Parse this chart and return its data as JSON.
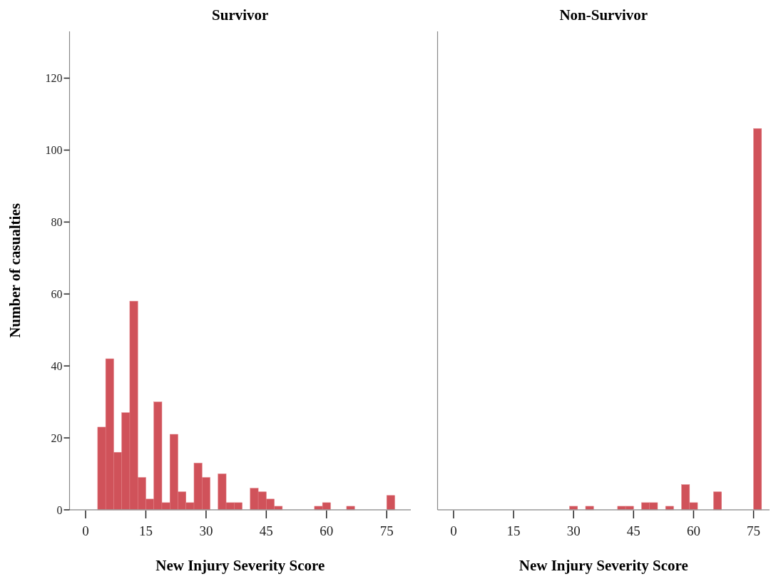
{
  "chart_data": [
    {
      "type": "histogram",
      "title": "Survivor",
      "xlabel": "New Injury Severity Score",
      "ylabel": "Number of casualties",
      "color": "#d0525a",
      "bins": [
        3,
        5,
        7,
        9,
        11,
        13,
        15,
        17,
        19,
        21,
        23,
        25,
        27,
        29,
        31,
        33,
        35,
        37,
        39,
        41,
        43,
        45,
        47,
        49,
        51,
        53,
        55,
        57,
        59,
        61,
        63,
        65,
        67,
        69,
        71,
        73,
        75,
        77
      ],
      "values": [
        23,
        42,
        16,
        27,
        58,
        9,
        3,
        30,
        2,
        21,
        5,
        2,
        13,
        9,
        0,
        10,
        2,
        2,
        0,
        6,
        5,
        3,
        1,
        0,
        0,
        0,
        0,
        1,
        2,
        0,
        0,
        1,
        0,
        0,
        0,
        0,
        4
      ],
      "xlim": [
        -4,
        81
      ],
      "xticks": [
        0,
        15,
        30,
        45,
        60,
        75
      ],
      "ylim": [
        0,
        133
      ],
      "yticks": [
        0,
        20,
        40,
        60,
        80,
        100,
        120
      ],
      "grid": false
    },
    {
      "type": "histogram",
      "title": "Non-Survivor",
      "xlabel": "New Injury Severity Score",
      "color": "#d0525a",
      "bins": [
        3,
        5,
        7,
        9,
        11,
        13,
        15,
        17,
        19,
        21,
        23,
        25,
        27,
        29,
        31,
        33,
        35,
        37,
        39,
        41,
        43,
        45,
        47,
        49,
        51,
        53,
        55,
        57,
        59,
        61,
        63,
        65,
        67,
        69,
        71,
        73,
        75,
        77
      ],
      "values": [
        0,
        0,
        0,
        0,
        0,
        0,
        0,
        0,
        0,
        0,
        0,
        0,
        0,
        1,
        0,
        1,
        0,
        0,
        0,
        1,
        1,
        0,
        2,
        2,
        0,
        1,
        0,
        7,
        2,
        0,
        0,
        5,
        0,
        0,
        0,
        0,
        106
      ],
      "xlim": [
        -4,
        79
      ],
      "xticks": [
        0,
        15,
        30,
        45,
        60,
        75
      ],
      "ylim": [
        0,
        133
      ],
      "tick_labels": "x",
      "grid": false
    }
  ]
}
